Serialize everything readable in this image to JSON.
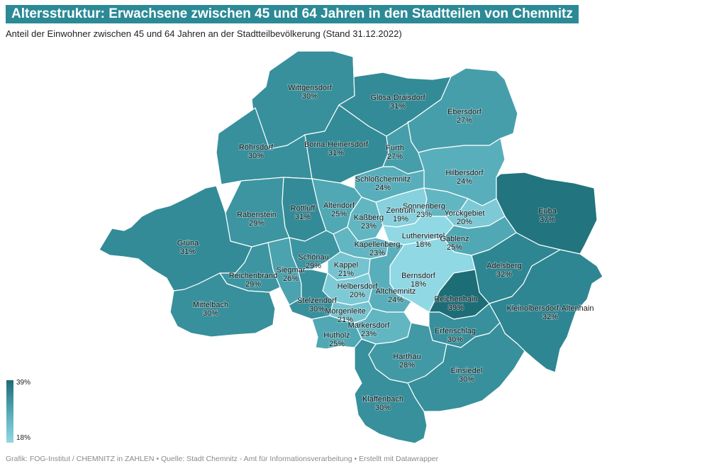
{
  "title": "Altersstruktur: Erwachsene zwischen 45 und 64 Jahren in den Stadtteilen von Chemnitz",
  "subtitle": "Anteil der Einwohner zwischen 45 und 64 Jahren an der Stadtteilbevölkerung (Stand 31.12.2022)",
  "footer": "Grafik: FOG-Institut / CHEMNITZ in ZAHLEN • Quelle: Stadt Chemnitz - Amt für Informationsverarbeitung • Erstellt mit Datawrapper",
  "legend": {
    "max_label": "39%",
    "min_label": "18%",
    "max_color": "#1d6d77",
    "min_color": "#8fd8e4"
  },
  "chart_data": {
    "type": "choropleth",
    "value_range": [
      18,
      39
    ],
    "unit": "%",
    "districts": [
      {
        "name": "Wittgensdorf",
        "value": 30
      },
      {
        "name": "Glösa-Draisdorf",
        "value": 31
      },
      {
        "name": "Ebersdorf",
        "value": 27
      },
      {
        "name": "Röhrsdorf",
        "value": 30
      },
      {
        "name": "Borna-Heinersdorf",
        "value": 31
      },
      {
        "name": "Furth",
        "value": 27
      },
      {
        "name": "Hilbersdorf",
        "value": 24
      },
      {
        "name": "Schloßchemnitz",
        "value": 24
      },
      {
        "name": "Euba",
        "value": 37
      },
      {
        "name": "Rabenstein",
        "value": 29
      },
      {
        "name": "Rottluff",
        "value": 31
      },
      {
        "name": "Altendorf",
        "value": 25
      },
      {
        "name": "Zentrum",
        "value": 19
      },
      {
        "name": "Sonnenberg",
        "value": 23
      },
      {
        "name": "Yorckgebiet",
        "value": 20
      },
      {
        "name": "Kaßberg",
        "value": 23
      },
      {
        "name": "Lutherviertel",
        "value": 18
      },
      {
        "name": "Gablenz",
        "value": 25
      },
      {
        "name": "Grüna",
        "value": 31
      },
      {
        "name": "Kapellenberg",
        "value": 23
      },
      {
        "name": "Schönau",
        "value": 29
      },
      {
        "name": "Kappel",
        "value": 21
      },
      {
        "name": "Adelsberg",
        "value": 32
      },
      {
        "name": "Siegmar",
        "value": 26
      },
      {
        "name": "Reichenbrand",
        "value": 29
      },
      {
        "name": "Bernsdorf",
        "value": 18
      },
      {
        "name": "Helbersdorf",
        "value": 20
      },
      {
        "name": "Altchemnitz",
        "value": 24
      },
      {
        "name": "Reichenhain",
        "value": 39
      },
      {
        "name": "Kleinolbersdorf-Altenhain",
        "value": 32
      },
      {
        "name": "Mittelbach",
        "value": 30
      },
      {
        "name": "Stelzendorf",
        "value": 30
      },
      {
        "name": "Morgenleite",
        "value": 21
      },
      {
        "name": "Markersdorf",
        "value": 23
      },
      {
        "name": "Erfenschlag",
        "value": 30
      },
      {
        "name": "Hutholz",
        "value": 25
      },
      {
        "name": "Harthau",
        "value": 28
      },
      {
        "name": "Einsiedel",
        "value": 30
      },
      {
        "name": "Klaffenbach",
        "value": 30
      }
    ]
  }
}
